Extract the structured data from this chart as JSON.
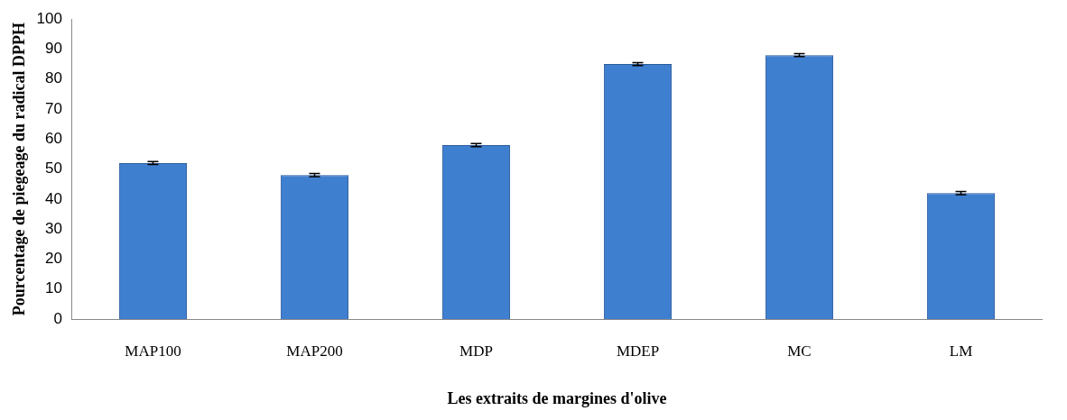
{
  "chart_data": {
    "type": "bar",
    "xlabel": "Les extraits de margines d'olive",
    "ylabel": "Pourcentage de piegeage du radical DPPH",
    "categories": [
      "MAP100",
      "MAP200",
      "MDP",
      "MDEP",
      "MC",
      "LM"
    ],
    "values": [
      52,
      48,
      58,
      85,
      88,
      42
    ],
    "errors": [
      0.5,
      0.5,
      0.5,
      0.5,
      0.5,
      0.5
    ],
    "color": "#3f7fd0",
    "ylim": [
      0,
      100
    ],
    "yticks": [
      0,
      10,
      20,
      30,
      40,
      50,
      60,
      70,
      80,
      90,
      100
    ],
    "grid": false,
    "legend": false
  }
}
